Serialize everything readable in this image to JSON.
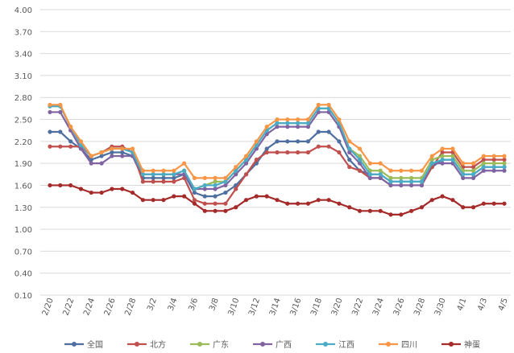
{
  "chart_data": {
    "type": "line",
    "categories": [
      "2/20",
      null,
      "2/22",
      null,
      "2/24",
      null,
      "2/26",
      null,
      "2/28",
      null,
      "3/2",
      null,
      "3/4",
      null,
      "3/6",
      null,
      "3/8",
      null,
      "3/10",
      null,
      "3/12",
      null,
      "3/14",
      null,
      "3/16",
      null,
      "3/18",
      null,
      "3/20",
      null,
      "3/22",
      null,
      "3/24",
      null,
      "3/26",
      null,
      "3/28",
      null,
      "3/30",
      null,
      "4/1",
      null,
      "4/3",
      null,
      "4/5"
    ],
    "ylim": [
      0.1,
      4.0
    ],
    "yticks": [
      {
        "value": 0.1,
        "label": "0.10"
      },
      {
        "value": 0.4,
        "label": "0.40"
      },
      {
        "value": 0.7,
        "label": "0.70"
      },
      {
        "value": 1.0,
        "label": "1.00"
      },
      {
        "value": 1.3,
        "label": "1.30"
      },
      {
        "value": 1.6,
        "label": "1.60"
      },
      {
        "value": 1.9,
        "label": "1.90"
      },
      {
        "value": 2.2,
        "label": "2.20"
      },
      {
        "value": 2.5,
        "label": "2.50"
      },
      {
        "value": 2.8,
        "label": "2.80"
      },
      {
        "value": 3.1,
        "label": "3.10"
      },
      {
        "value": 3.4,
        "label": "3.40"
      },
      {
        "value": 3.7,
        "label": "3.70"
      },
      {
        "value": 4.0,
        "label": "4.00"
      }
    ],
    "grid": true,
    "legend": "bottom",
    "series": [
      {
        "name": "全国",
        "color": "#4f6fa0",
        "values": [
          2.33,
          2.33,
          2.2,
          2.1,
          1.95,
          2.0,
          2.05,
          2.05,
          2.0,
          1.7,
          1.7,
          1.7,
          1.7,
          1.75,
          1.5,
          1.45,
          1.45,
          1.5,
          1.6,
          1.75,
          1.9,
          2.1,
          2.2,
          2.2,
          2.2,
          2.2,
          2.33,
          2.33,
          2.2,
          1.95,
          1.8,
          1.75,
          1.75,
          1.65,
          1.65,
          1.65,
          1.65,
          1.85,
          1.95,
          1.95,
          1.75,
          1.75,
          1.85,
          1.85,
          1.85
        ]
      },
      {
        "name": "北方",
        "color": "#c0504d",
        "values": [
          2.13,
          2.13,
          2.13,
          2.13,
          2.0,
          2.05,
          2.13,
          2.13,
          2.05,
          1.65,
          1.65,
          1.65,
          1.65,
          1.7,
          1.4,
          1.35,
          1.35,
          1.35,
          1.55,
          1.75,
          1.95,
          2.05,
          2.05,
          2.05,
          2.05,
          2.05,
          2.13,
          2.13,
          2.05,
          1.85,
          1.8,
          1.7,
          1.7,
          1.6,
          1.6,
          1.6,
          1.6,
          1.85,
          2.05,
          2.05,
          1.85,
          1.85,
          1.95,
          1.95,
          1.95
        ]
      },
      {
        "name": "广东",
        "color": "#9bbb59",
        "values": [
          2.68,
          2.68,
          2.4,
          2.2,
          2.0,
          2.05,
          2.1,
          2.1,
          2.1,
          1.75,
          1.75,
          1.75,
          1.75,
          1.8,
          1.55,
          1.6,
          1.65,
          1.65,
          1.8,
          1.95,
          2.15,
          2.35,
          2.45,
          2.45,
          2.45,
          2.45,
          2.65,
          2.65,
          2.45,
          2.1,
          2.0,
          1.8,
          1.8,
          1.7,
          1.7,
          1.7,
          1.7,
          1.95,
          2.0,
          2.0,
          1.8,
          1.8,
          1.9,
          1.9,
          1.9
        ]
      },
      {
        "name": "广西",
        "color": "#8064a2",
        "values": [
          2.6,
          2.6,
          2.35,
          2.1,
          1.9,
          1.9,
          2.0,
          2.0,
          2.0,
          1.75,
          1.75,
          1.75,
          1.75,
          1.75,
          1.55,
          1.55,
          1.55,
          1.6,
          1.75,
          1.9,
          2.1,
          2.3,
          2.4,
          2.4,
          2.4,
          2.4,
          2.6,
          2.6,
          2.4,
          2.05,
          1.9,
          1.7,
          1.7,
          1.6,
          1.6,
          1.6,
          1.6,
          1.9,
          1.9,
          1.9,
          1.7,
          1.7,
          1.8,
          1.8,
          1.8
        ]
      },
      {
        "name": "江西",
        "color": "#4bacc6",
        "values": [
          2.68,
          2.68,
          2.4,
          2.15,
          2.0,
          2.05,
          2.1,
          2.1,
          2.05,
          1.75,
          1.75,
          1.75,
          1.75,
          1.8,
          1.55,
          1.6,
          1.6,
          1.65,
          1.8,
          1.95,
          2.15,
          2.35,
          2.45,
          2.45,
          2.45,
          2.45,
          2.65,
          2.65,
          2.45,
          2.1,
          1.95,
          1.75,
          1.75,
          1.65,
          1.65,
          1.65,
          1.65,
          1.9,
          1.95,
          1.95,
          1.75,
          1.75,
          1.85,
          1.85,
          1.85
        ]
      },
      {
        "name": "四川",
        "color": "#f79646",
        "values": [
          2.7,
          2.7,
          2.4,
          2.2,
          2.0,
          2.05,
          2.1,
          2.1,
          2.1,
          1.8,
          1.8,
          1.8,
          1.8,
          1.9,
          1.7,
          1.7,
          1.7,
          1.7,
          1.85,
          2.0,
          2.2,
          2.4,
          2.5,
          2.5,
          2.5,
          2.5,
          2.7,
          2.7,
          2.5,
          2.2,
          2.1,
          1.9,
          1.9,
          1.8,
          1.8,
          1.8,
          1.8,
          2.0,
          2.1,
          2.1,
          1.9,
          1.9,
          2.0,
          2.0,
          2.0
        ]
      },
      {
        "name": "神蛋",
        "color": "#a52a2a",
        "values": [
          1.6,
          1.6,
          1.6,
          1.55,
          1.5,
          1.5,
          1.55,
          1.55,
          1.5,
          1.4,
          1.4,
          1.4,
          1.45,
          1.45,
          1.35,
          1.25,
          1.25,
          1.25,
          1.3,
          1.4,
          1.45,
          1.45,
          1.4,
          1.35,
          1.35,
          1.35,
          1.4,
          1.4,
          1.35,
          1.3,
          1.25,
          1.25,
          1.25,
          1.2,
          1.2,
          1.25,
          1.3,
          1.4,
          1.45,
          1.4,
          1.3,
          1.3,
          1.35,
          1.35,
          1.35
        ]
      }
    ]
  }
}
